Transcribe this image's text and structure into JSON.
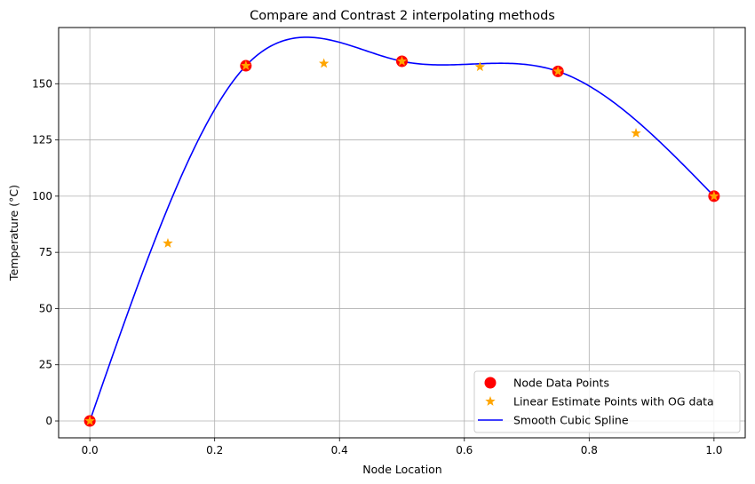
{
  "chart_data": {
    "type": "line",
    "title": "Compare and Contrast 2 interpolating methods",
    "xlabel": "Node Location",
    "ylabel": "Temperature (°C)",
    "xlim": [
      -0.05,
      1.05
    ],
    "ylim": [
      -7.5,
      175
    ],
    "xticks": [
      0.0,
      0.2,
      0.4,
      0.6,
      0.8,
      1.0
    ],
    "xtick_labels": [
      "0.0",
      "0.2",
      "0.4",
      "0.6",
      "0.8",
      "1.0"
    ],
    "yticks": [
      0,
      25,
      50,
      75,
      100,
      125,
      150
    ],
    "ytick_labels": [
      "0",
      "25",
      "50",
      "75",
      "100",
      "125",
      "150"
    ],
    "grid": true,
    "legend_position": "bottom-right",
    "series": [
      {
        "name": "Node Data Points",
        "kind": "marker-circle",
        "color": "#ff0000",
        "x": [
          0.0,
          0.25,
          0.5,
          0.75,
          1.0
        ],
        "y": [
          0,
          158,
          160,
          155.5,
          100
        ]
      },
      {
        "name": "Linear Estimate Points with OG data",
        "kind": "marker-star",
        "color": "#ffa500",
        "x": [
          0.0,
          0.125,
          0.25,
          0.375,
          0.5,
          0.625,
          0.75,
          0.875,
          1.0
        ],
        "y": [
          0,
          79,
          158,
          159,
          160,
          157.5,
          155.5,
          128,
          100
        ]
      },
      {
        "name": "Smooth Cubic Spline",
        "kind": "line",
        "color": "#0000ff",
        "x": [
          0.0,
          0.25,
          0.5,
          0.75,
          1.0
        ],
        "y": [
          0,
          158,
          160,
          155.5,
          100
        ]
      }
    ]
  }
}
